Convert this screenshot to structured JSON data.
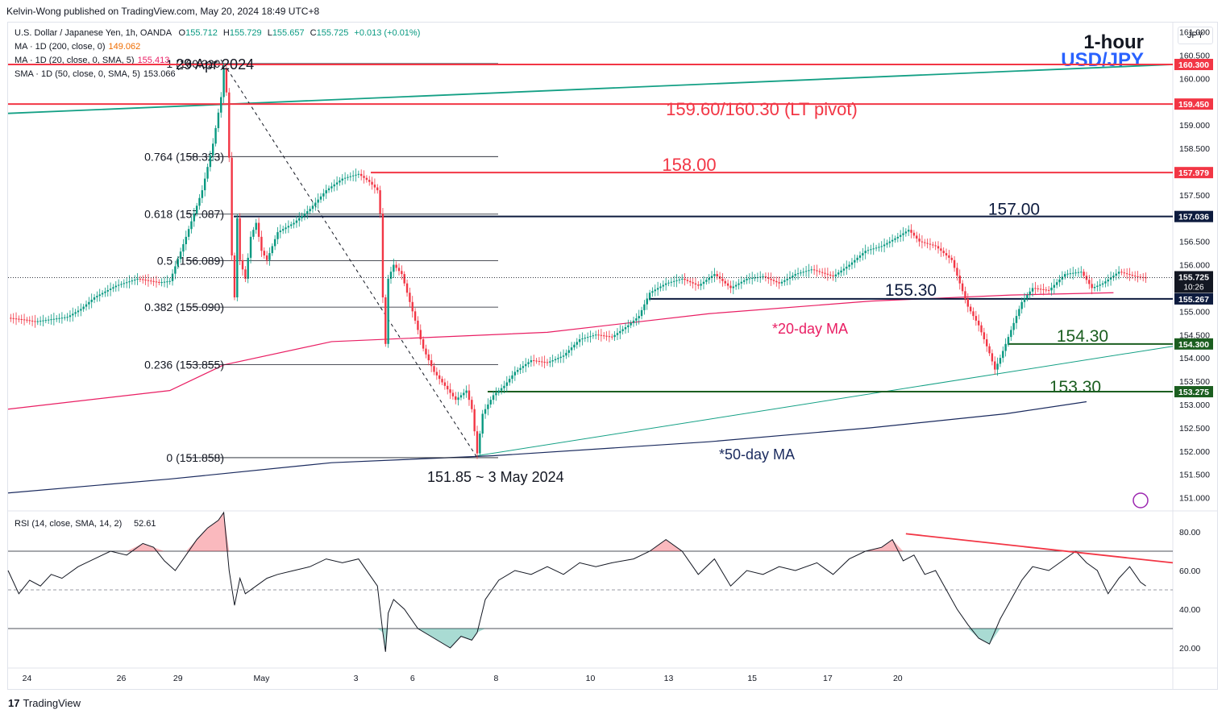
{
  "header": {
    "publisher_line": "Kelvin-Wong published on TradingView.com, May 20, 2024 18:49 UTC+8",
    "instrument_line": "U.S. Dollar / Japanese Yen, 1h, OANDA",
    "ohlc": {
      "o_label": "O",
      "o": "155.712",
      "h_label": "H",
      "h": "155.729",
      "l_label": "L",
      "l": "155.657",
      "c_label": "C",
      "c": "155.725",
      "change": "+0.013 (+0.01%)"
    },
    "indicators": [
      {
        "label": "MA · 1D (200, close, 0)",
        "value": "149.062",
        "color": "#ef6c00"
      },
      {
        "label": "MA · 1D (20, close, 0, SMA, 5)",
        "value": "155.413",
        "color": "#e91e63"
      },
      {
        "label": "SMA · 1D (50, close, 0, SMA, 5)",
        "value": "153.066",
        "color": "#131722"
      }
    ],
    "currency_button": "JPY",
    "timeframe_title": "1-hour",
    "pair_title": "USD/JPY"
  },
  "footer": {
    "logo_mark": "17",
    "logo_text": "TradingView"
  },
  "chart_data": {
    "type": "candlestick",
    "symbol": "USD/JPY",
    "timeframe": "1h",
    "ylim": [
      150.75,
      161.2
    ],
    "y_ticks": [
      "151.000",
      "151.500",
      "152.000",
      "152.500",
      "153.000",
      "153.500",
      "154.000",
      "154.500",
      "155.000",
      "155.500",
      "156.000",
      "156.500",
      "157.000",
      "157.500",
      "158.000",
      "158.500",
      "159.000",
      "159.500",
      "160.000",
      "160.500",
      "161.000"
    ],
    "x_ticks": [
      "24",
      "26",
      "29",
      "May",
      "3",
      "6",
      "8",
      "10",
      "13",
      "15",
      "17",
      "20"
    ],
    "price_path": [
      {
        "t": 0,
        "p": 154.86
      },
      {
        "t": 6,
        "p": 154.82
      },
      {
        "t": 10,
        "p": 154.78
      },
      {
        "t": 16,
        "p": 154.83
      },
      {
        "t": 22,
        "p": 154.88
      },
      {
        "t": 27,
        "p": 155.05
      },
      {
        "t": 32,
        "p": 155.3
      },
      {
        "t": 40,
        "p": 155.55
      },
      {
        "t": 48,
        "p": 155.7
      },
      {
        "t": 56,
        "p": 155.62
      },
      {
        "t": 60,
        "p": 155.65
      },
      {
        "t": 66,
        "p": 156.6
      },
      {
        "t": 72,
        "p": 157.6
      },
      {
        "t": 76,
        "p": 158.6
      },
      {
        "t": 79,
        "p": 159.6
      },
      {
        "t": 80,
        "p": 160.2
      },
      {
        "t": 81,
        "p": 159.7
      },
      {
        "t": 82,
        "p": 158.3
      },
      {
        "t": 83,
        "p": 156.2
      },
      {
        "t": 84,
        "p": 155.3
      },
      {
        "t": 85,
        "p": 157.0
      },
      {
        "t": 86,
        "p": 156.1
      },
      {
        "t": 88,
        "p": 155.7
      },
      {
        "t": 90,
        "p": 156.6
      },
      {
        "t": 92,
        "p": 156.9
      },
      {
        "t": 94,
        "p": 156.3
      },
      {
        "t": 96,
        "p": 156.1
      },
      {
        "t": 100,
        "p": 156.7
      },
      {
        "t": 106,
        "p": 156.9
      },
      {
        "t": 112,
        "p": 157.2
      },
      {
        "t": 118,
        "p": 157.6
      },
      {
        "t": 124,
        "p": 157.85
      },
      {
        "t": 130,
        "p": 157.95
      },
      {
        "t": 134,
        "p": 157.78
      },
      {
        "t": 137,
        "p": 157.6
      },
      {
        "t": 138,
        "p": 157.1
      },
      {
        "t": 139,
        "p": 155.3
      },
      {
        "t": 140,
        "p": 154.3
      },
      {
        "t": 141,
        "p": 155.7
      },
      {
        "t": 143,
        "p": 156.0
      },
      {
        "t": 146,
        "p": 155.8
      },
      {
        "t": 150,
        "p": 155.0
      },
      {
        "t": 154,
        "p": 154.2
      },
      {
        "t": 158,
        "p": 153.7
      },
      {
        "t": 162,
        "p": 153.4
      },
      {
        "t": 166,
        "p": 153.1
      },
      {
        "t": 170,
        "p": 153.3
      },
      {
        "t": 172,
        "p": 152.9
      },
      {
        "t": 174,
        "p": 151.95
      },
      {
        "t": 176,
        "p": 152.8
      },
      {
        "t": 180,
        "p": 153.2
      },
      {
        "t": 184,
        "p": 153.4
      },
      {
        "t": 188,
        "p": 153.7
      },
      {
        "t": 194,
        "p": 153.95
      },
      {
        "t": 200,
        "p": 153.9
      },
      {
        "t": 206,
        "p": 154.05
      },
      {
        "t": 212,
        "p": 154.4
      },
      {
        "t": 218,
        "p": 154.5
      },
      {
        "t": 224,
        "p": 154.45
      },
      {
        "t": 230,
        "p": 154.7
      },
      {
        "t": 234,
        "p": 154.9
      },
      {
        "t": 238,
        "p": 155.4
      },
      {
        "t": 244,
        "p": 155.6
      },
      {
        "t": 250,
        "p": 155.7
      },
      {
        "t": 256,
        "p": 155.55
      },
      {
        "t": 262,
        "p": 155.8
      },
      {
        "t": 268,
        "p": 155.5
      },
      {
        "t": 274,
        "p": 155.7
      },
      {
        "t": 280,
        "p": 155.75
      },
      {
        "t": 286,
        "p": 155.6
      },
      {
        "t": 292,
        "p": 155.8
      },
      {
        "t": 298,
        "p": 155.9
      },
      {
        "t": 306,
        "p": 155.75
      },
      {
        "t": 312,
        "p": 156.0
      },
      {
        "t": 318,
        "p": 156.3
      },
      {
        "t": 324,
        "p": 156.4
      },
      {
        "t": 330,
        "p": 156.6
      },
      {
        "t": 334,
        "p": 156.75
      },
      {
        "t": 338,
        "p": 156.5
      },
      {
        "t": 344,
        "p": 156.4
      },
      {
        "t": 350,
        "p": 156.1
      },
      {
        "t": 353,
        "p": 155.6
      },
      {
        "t": 356,
        "p": 155.1
      },
      {
        "t": 360,
        "p": 154.7
      },
      {
        "t": 364,
        "p": 154.1
      },
      {
        "t": 366,
        "p": 153.75
      },
      {
        "t": 368,
        "p": 154.0
      },
      {
        "t": 372,
        "p": 154.6
      },
      {
        "t": 376,
        "p": 155.2
      },
      {
        "t": 380,
        "p": 155.5
      },
      {
        "t": 386,
        "p": 155.45
      },
      {
        "t": 392,
        "p": 155.8
      },
      {
        "t": 398,
        "p": 155.85
      },
      {
        "t": 402,
        "p": 155.5
      },
      {
        "t": 406,
        "p": 155.6
      },
      {
        "t": 412,
        "p": 155.85
      },
      {
        "t": 418,
        "p": 155.75
      },
      {
        "t": 422,
        "p": 155.72
      }
    ],
    "sma_20d": [
      [
        0,
        152.9
      ],
      [
        60,
        153.3
      ],
      [
        80,
        153.85
      ],
      [
        120,
        154.35
      ],
      [
        200,
        154.55
      ],
      [
        260,
        154.95
      ],
      [
        320,
        155.22
      ],
      [
        372,
        155.35
      ],
      [
        410,
        155.4
      ]
    ],
    "sma_50d": [
      [
        0,
        151.1
      ],
      [
        60,
        151.4
      ],
      [
        120,
        151.75
      ],
      [
        180,
        151.9
      ],
      [
        260,
        152.2
      ],
      [
        320,
        152.5
      ],
      [
        370,
        152.8
      ],
      [
        400,
        153.06
      ]
    ],
    "trendline_upper": [
      [
        0,
        159.25
      ],
      [
        432,
        160.3
      ]
    ],
    "trendline_lower": [
      [
        174,
        151.9
      ],
      [
        432,
        154.25
      ]
    ],
    "fibonacci": {
      "from_label": "29 Apr 2024",
      "to_label": "151.85 ~ 3 May 2024",
      "levels": [
        {
          "label": "1 (160.320)",
          "price": 160.32
        },
        {
          "label": "0.764 (158.323)",
          "price": 158.323
        },
        {
          "label": "0.618 (157.087)",
          "price": 157.087
        },
        {
          "label": "0.5 (156.089)",
          "price": 156.089
        },
        {
          "label": "0.382 (155.090)",
          "price": 155.09
        },
        {
          "label": "0.236 (153.855)",
          "price": 153.855
        },
        {
          "label": "0 (151.858)",
          "price": 151.858
        }
      ]
    },
    "horizontal_levels": [
      {
        "label": "159.60/160.30 (LT pivot)",
        "price": 159.45,
        "axis_label": "159.450",
        "color": "#f23645"
      },
      {
        "label": "",
        "price": 160.3,
        "axis_label": "160.300",
        "color": "#f23645"
      },
      {
        "label": "158.00",
        "price": 157.979,
        "axis_label": "157.979",
        "color": "#f23645"
      },
      {
        "label": "157.00",
        "price": 157.036,
        "axis_label": "157.036",
        "color": "#0d1b3e"
      },
      {
        "label": "155.30",
        "price": 155.267,
        "axis_label": "155.267",
        "color": "#0d1b3e"
      },
      {
        "label": "154.30",
        "price": 154.3,
        "axis_label": "154.300",
        "color": "#1b5e20"
      },
      {
        "label": "153.30",
        "price": 153.275,
        "axis_label": "153.275",
        "color": "#1b5e20"
      }
    ],
    "last_price": {
      "value": "155.725",
      "countdown": "10:26"
    },
    "annotations": [
      "*20-day MA",
      "*50-day MA"
    ],
    "rsi": {
      "label": "RSI (14, close, SMA, 14, 2)",
      "value": "52.61",
      "ylim": [
        10,
        90
      ],
      "y_ticks": [
        "20.00",
        "40.00",
        "60.00",
        "80.00"
      ],
      "upper_band": 70,
      "lower_band": 30,
      "mid": 50,
      "path": [
        [
          0,
          60
        ],
        [
          4,
          48
        ],
        [
          8,
          55
        ],
        [
          12,
          52
        ],
        [
          16,
          58
        ],
        [
          20,
          56
        ],
        [
          26,
          62
        ],
        [
          32,
          66
        ],
        [
          38,
          70
        ],
        [
          44,
          68
        ],
        [
          50,
          74
        ],
        [
          54,
          72
        ],
        [
          58,
          65
        ],
        [
          62,
          60
        ],
        [
          66,
          68
        ],
        [
          70,
          76
        ],
        [
          74,
          82
        ],
        [
          78,
          86
        ],
        [
          80,
          90
        ],
        [
          82,
          60
        ],
        [
          84,
          42
        ],
        [
          86,
          56
        ],
        [
          88,
          48
        ],
        [
          92,
          52
        ],
        [
          96,
          56
        ],
        [
          100,
          58
        ],
        [
          106,
          60
        ],
        [
          112,
          62
        ],
        [
          118,
          66
        ],
        [
          124,
          64
        ],
        [
          130,
          66
        ],
        [
          134,
          58
        ],
        [
          137,
          52
        ],
        [
          139,
          28
        ],
        [
          140,
          18
        ],
        [
          141,
          38
        ],
        [
          143,
          45
        ],
        [
          147,
          40
        ],
        [
          152,
          30
        ],
        [
          158,
          25
        ],
        [
          164,
          20
        ],
        [
          168,
          26
        ],
        [
          172,
          24
        ],
        [
          174,
          28
        ],
        [
          177,
          45
        ],
        [
          182,
          55
        ],
        [
          188,
          60
        ],
        [
          194,
          58
        ],
        [
          200,
          62
        ],
        [
          206,
          58
        ],
        [
          212,
          64
        ],
        [
          218,
          62
        ],
        [
          224,
          64
        ],
        [
          232,
          66
        ],
        [
          238,
          70
        ],
        [
          244,
          76
        ],
        [
          250,
          70
        ],
        [
          256,
          58
        ],
        [
          262,
          66
        ],
        [
          268,
          52
        ],
        [
          274,
          60
        ],
        [
          280,
          58
        ],
        [
          286,
          62
        ],
        [
          292,
          60
        ],
        [
          300,
          64
        ],
        [
          306,
          58
        ],
        [
          312,
          66
        ],
        [
          318,
          70
        ],
        [
          324,
          72
        ],
        [
          328,
          76
        ],
        [
          332,
          65
        ],
        [
          336,
          68
        ],
        [
          340,
          58
        ],
        [
          344,
          60
        ],
        [
          348,
          50
        ],
        [
          352,
          40
        ],
        [
          356,
          32
        ],
        [
          360,
          25
        ],
        [
          364,
          22
        ],
        [
          368,
          35
        ],
        [
          372,
          45
        ],
        [
          376,
          55
        ],
        [
          380,
          62
        ],
        [
          386,
          60
        ],
        [
          392,
          66
        ],
        [
          396,
          70
        ],
        [
          400,
          64
        ],
        [
          404,
          60
        ],
        [
          408,
          48
        ],
        [
          412,
          56
        ],
        [
          416,
          62
        ],
        [
          420,
          54
        ],
        [
          422,
          52
        ]
      ],
      "divergence_line": [
        [
          333,
          79
        ],
        [
          432,
          64
        ]
      ]
    }
  }
}
